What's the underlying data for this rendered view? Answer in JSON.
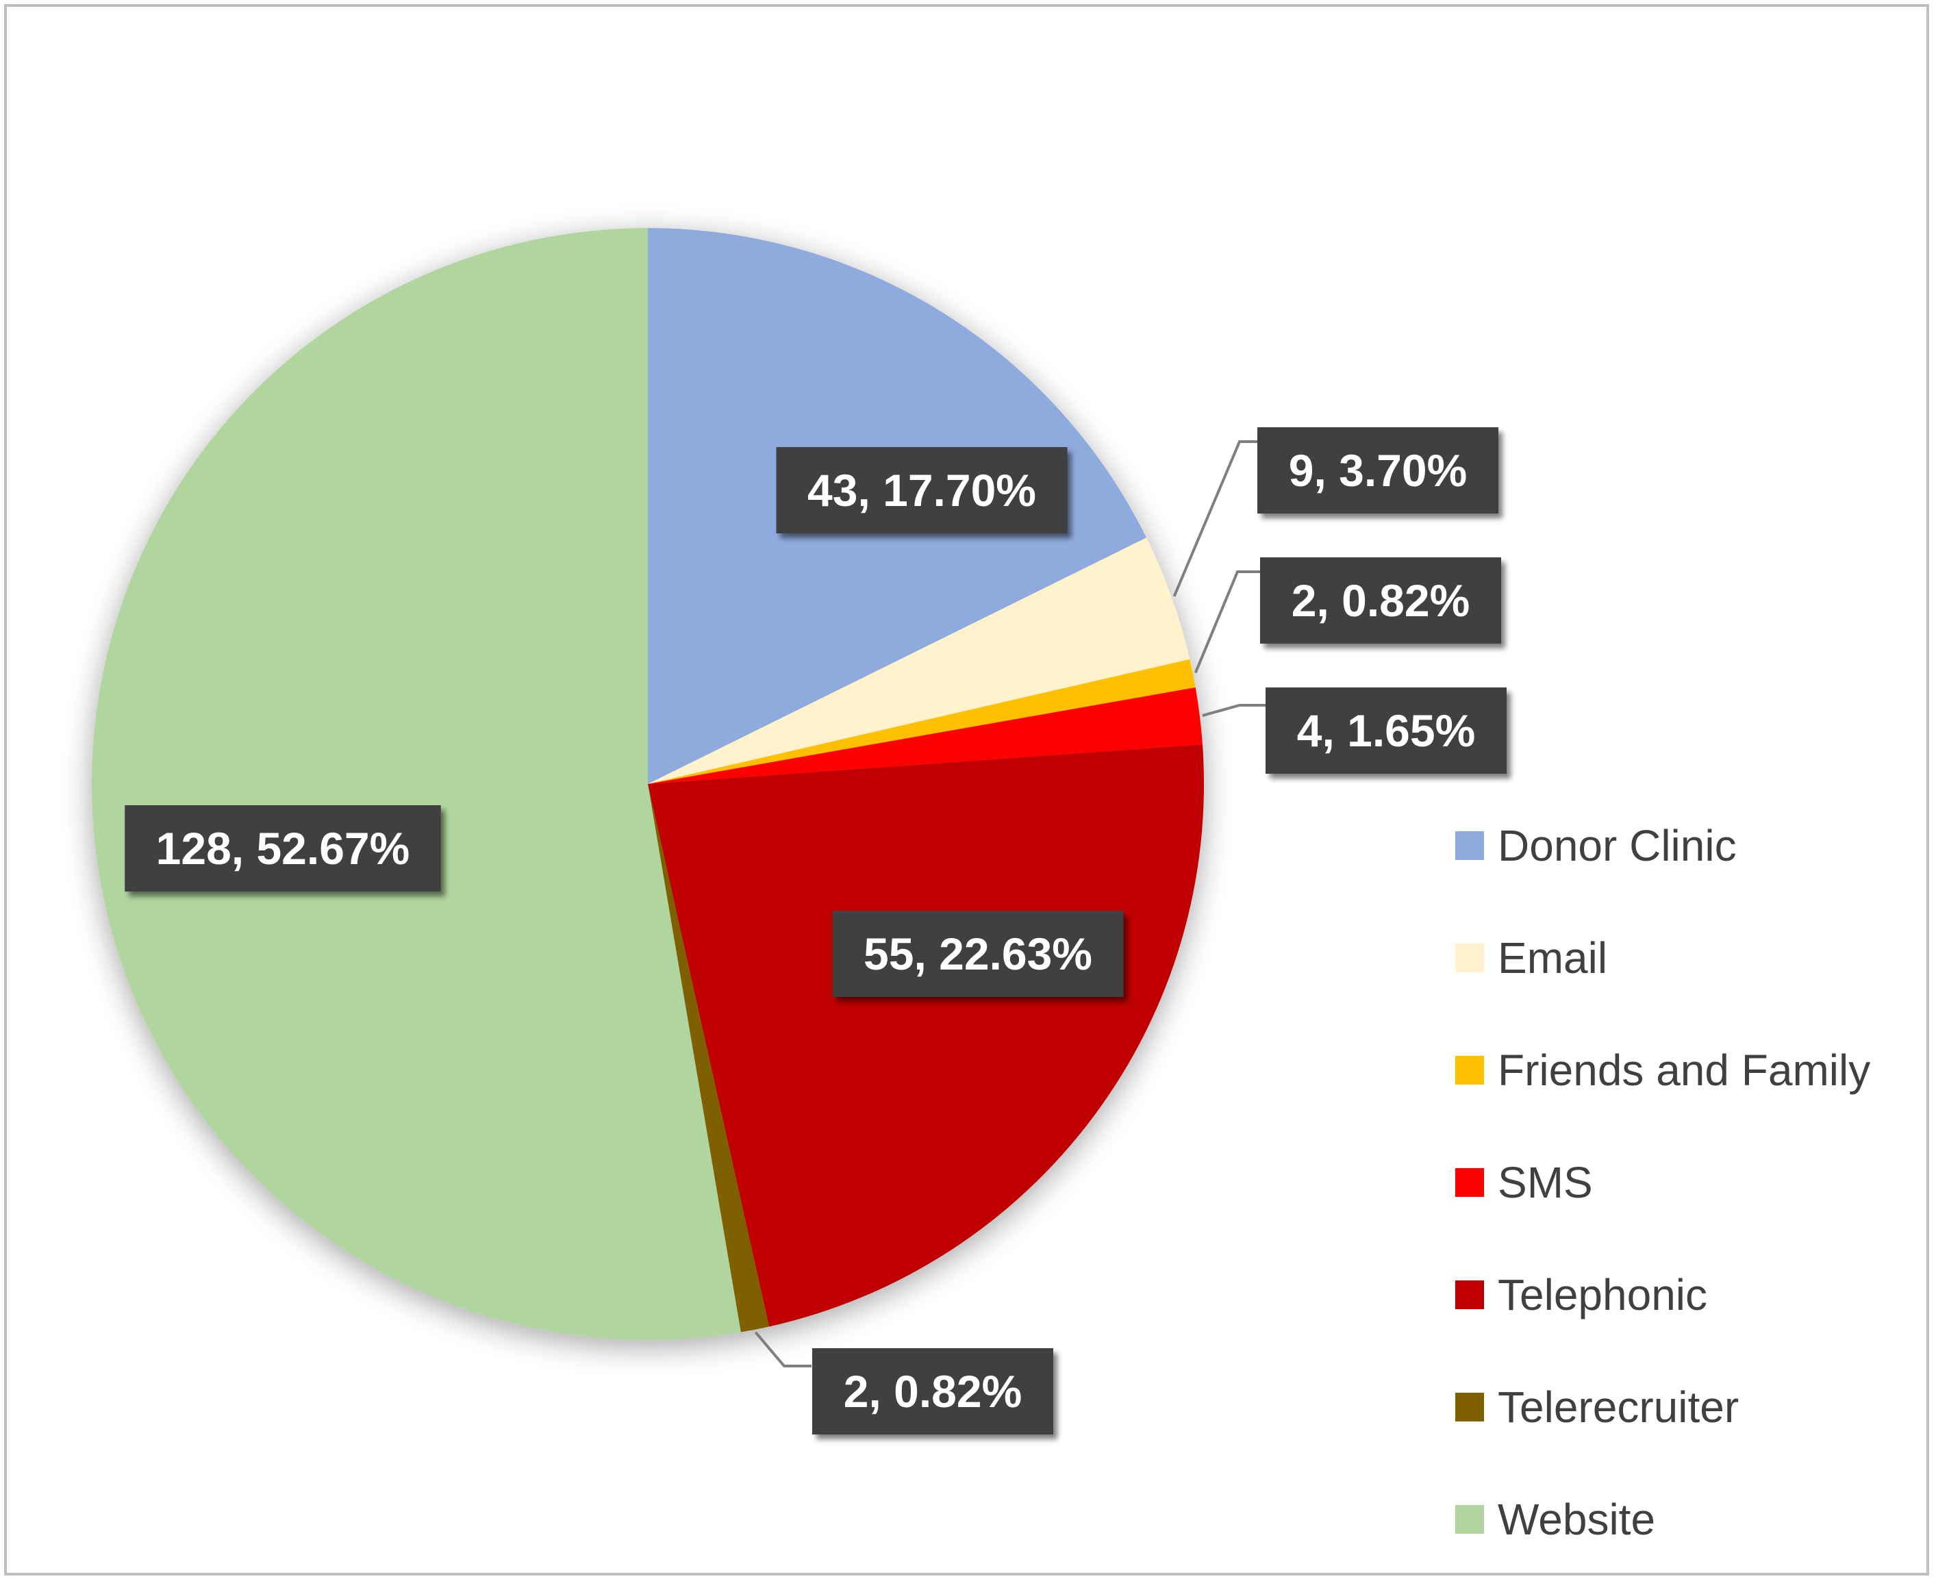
{
  "chart_data": {
    "type": "pie",
    "title": "",
    "categories": [
      "Donor Clinic",
      "Email",
      "Friends and Family",
      "SMS",
      "Telephonic",
      "Telerecruiter",
      "Website"
    ],
    "values": [
      43,
      9,
      2,
      4,
      55,
      2,
      128
    ],
    "percentages": [
      "17.70%",
      "3.70%",
      "0.82%",
      "1.65%",
      "22.63%",
      "0.82%",
      "52.67%"
    ],
    "data_labels": [
      "43, 17.70%",
      "9, 3.70%",
      "2, 0.82%",
      "4, 1.65%",
      "55, 22.63%",
      "2, 0.82%",
      "128, 52.67%"
    ],
    "colors": [
      "#8faadc",
      "#fff2cc",
      "#ffc000",
      "#ff0000",
      "#c00000",
      "#7f6000",
      "#b0d59e"
    ],
    "label_color": "#404040",
    "legend_position": "right",
    "start_angle": "12 o'clock, clockwise"
  }
}
